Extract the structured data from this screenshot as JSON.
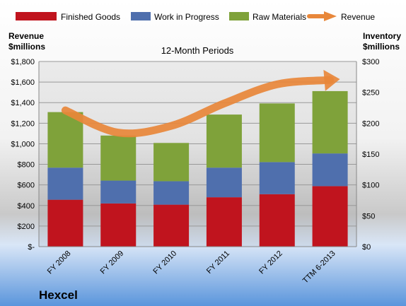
{
  "company": "Hexcel",
  "chart_data": {
    "type": "bar",
    "title": "12-Month Periods",
    "left_axis_title": [
      "Revenue",
      "$millions"
    ],
    "right_axis_title": [
      "Inventory",
      "$millions"
    ],
    "categories": [
      "FY 2008",
      "FY 2009",
      "FY 2010",
      "FY 2011",
      "FY 2012",
      "TTM 6-2013"
    ],
    "left_ylim": [
      0,
      1800
    ],
    "right_ylim": [
      0,
      300
    ],
    "left_ticks": [
      "$-",
      "$200",
      "$400",
      "$600",
      "$800",
      "$1,000",
      "$1,200",
      "$1,400",
      "$1,600",
      "$1,800"
    ],
    "right_ticks": [
      "$0",
      "$50",
      "$100",
      "$150",
      "$200",
      "$250",
      "$300"
    ],
    "series": [
      {
        "name": "Finished Goods",
        "axis": "right",
        "color": "#c0141e",
        "values": [
          76,
          70,
          68,
          80,
          85,
          98
        ]
      },
      {
        "name": "Work in Progress",
        "axis": "right",
        "color": "#4f6fad",
        "values": [
          52,
          37,
          38,
          48,
          52,
          53
        ]
      },
      {
        "name": "Raw Materials",
        "axis": "right",
        "color": "#7fa23a",
        "values": [
          90,
          73,
          62,
          86,
          95,
          101
        ]
      }
    ],
    "line_series": {
      "name": "Revenue",
      "axis": "left",
      "color": "#e8873a",
      "values": [
        1325,
        1108,
        1174,
        1392,
        1578,
        1620
      ]
    },
    "grid": true
  }
}
